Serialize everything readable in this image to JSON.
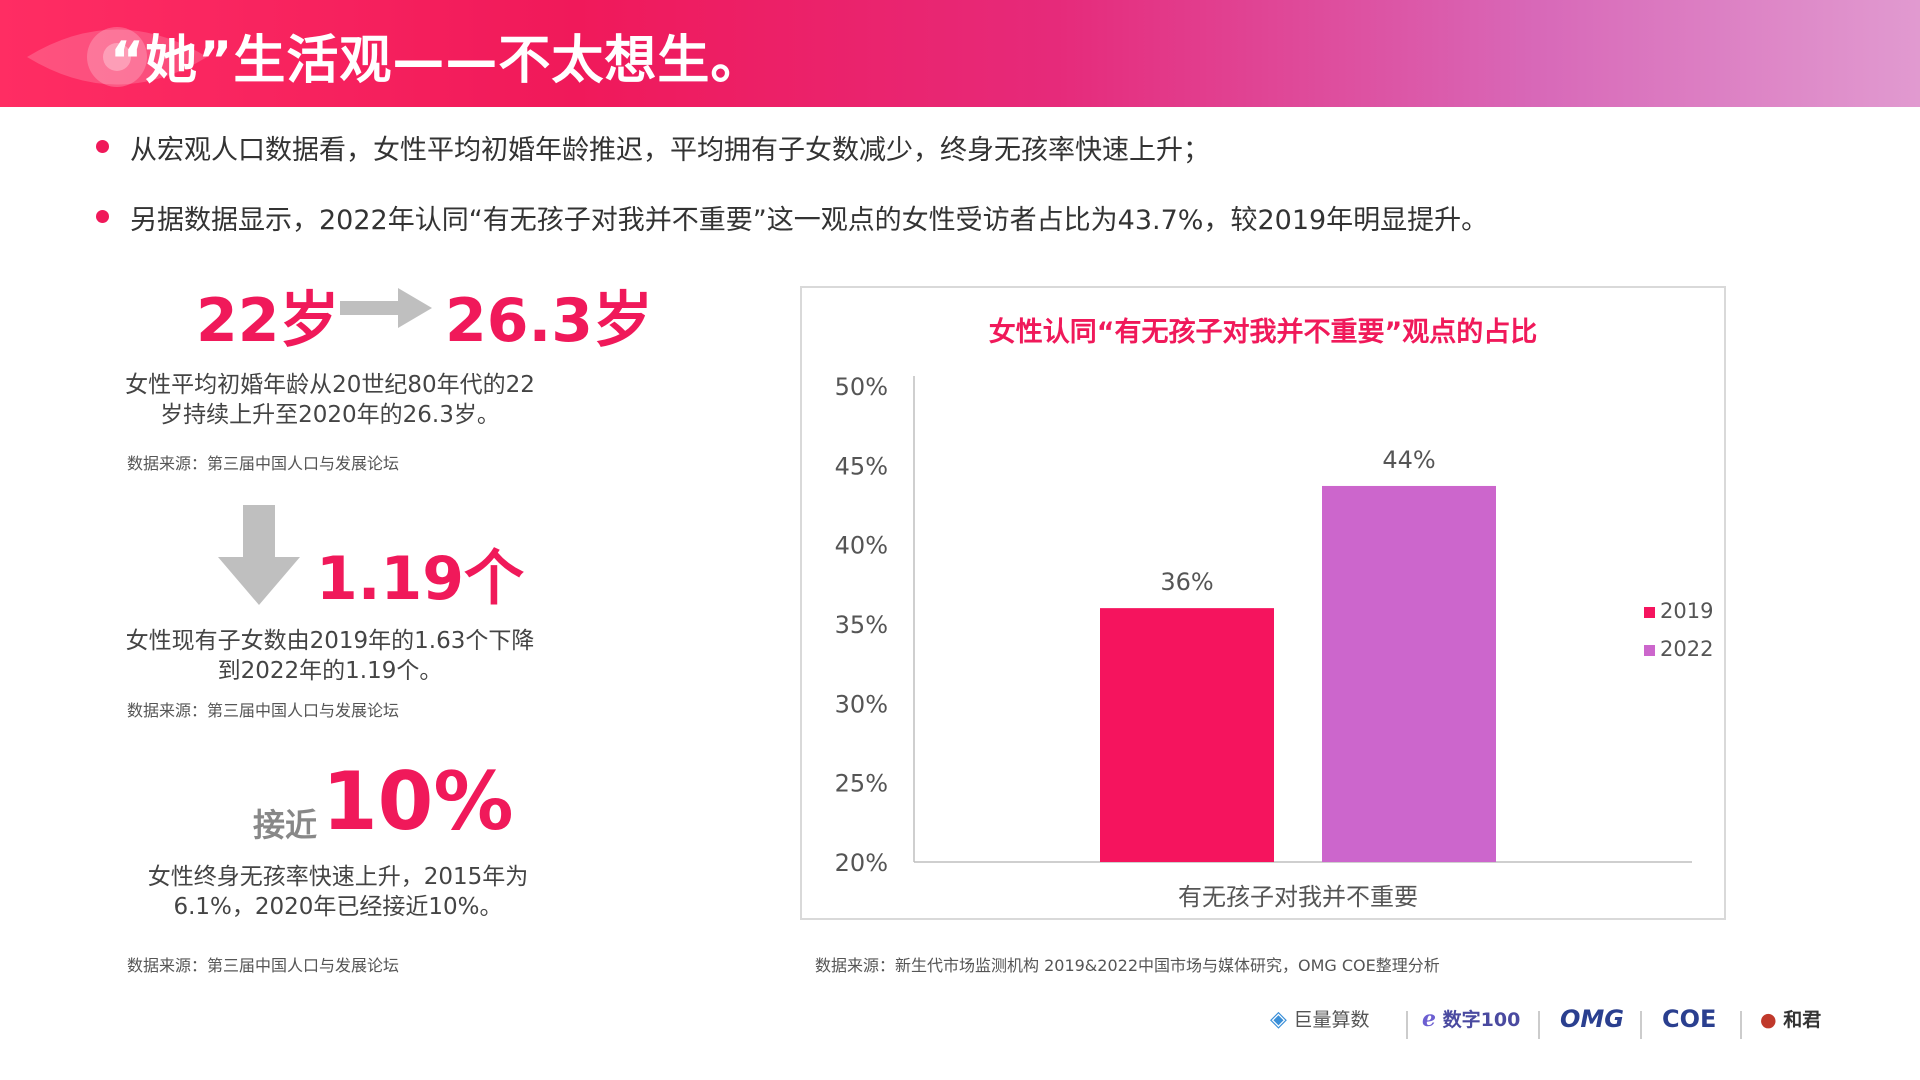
{
  "header": {
    "title": "“她”生活观——不太想生。"
  },
  "bullets": [
    "从宏观人口数据看，女性平均初婚年龄推迟，平均拥有子女数减少，终身无孩率快速上升；",
    "另据数据显示，2022年认同“有无孩子对我并不重要”这一观点的女性受访者占比为43.7%，较2019年明显提升。"
  ],
  "stats": {
    "marriage_age_from": "22岁",
    "marriage_age_to": "26.3岁",
    "marriage_desc": "女性平均初婚年龄从20世纪80年代的22岁持续上升至2020年的26.3岁。",
    "marriage_source": "数据来源：第三届中国人口与发展论坛",
    "children": "1.19个",
    "children_desc": "女性现有子女数由2019年的1.63个下降到2022年的1.19个。",
    "children_source": "数据来源：第三届中国人口与发展论坛",
    "childless_prefix": "接近",
    "childless": "10%",
    "childless_desc": "女性终身无孩率快速上升，2015年为6.1%，2020年已经接近10%。",
    "childless_source": "数据来源：第三届中国人口与发展论坛"
  },
  "chart_source": "数据来源：新生代市场监测机构 2019&2022中国市场与媒体研究，OMG COE整理分析",
  "chart_data": {
    "type": "bar",
    "title": "女性认同“有无孩子对我并不重要”观点的占比",
    "categories": [
      "有无孩子对我并不重要"
    ],
    "series": [
      {
        "name": "2019",
        "values": [
          36
        ],
        "label": "36%",
        "color": "#f5145e"
      },
      {
        "name": "2022",
        "values": [
          43.7
        ],
        "label": "44%",
        "color": "#cc66cc"
      }
    ],
    "ylim": [
      20,
      50
    ],
    "yticks": [
      "20%",
      "25%",
      "30%",
      "35%",
      "40%",
      "45%",
      "50%"
    ],
    "legend": "right",
    "grid": false
  },
  "logos": [
    "巨量算数",
    "数字100",
    "OMG",
    "COE",
    "和君"
  ],
  "colors": {
    "accent": "#f0195a",
    "secondary": "#cc66cc"
  }
}
